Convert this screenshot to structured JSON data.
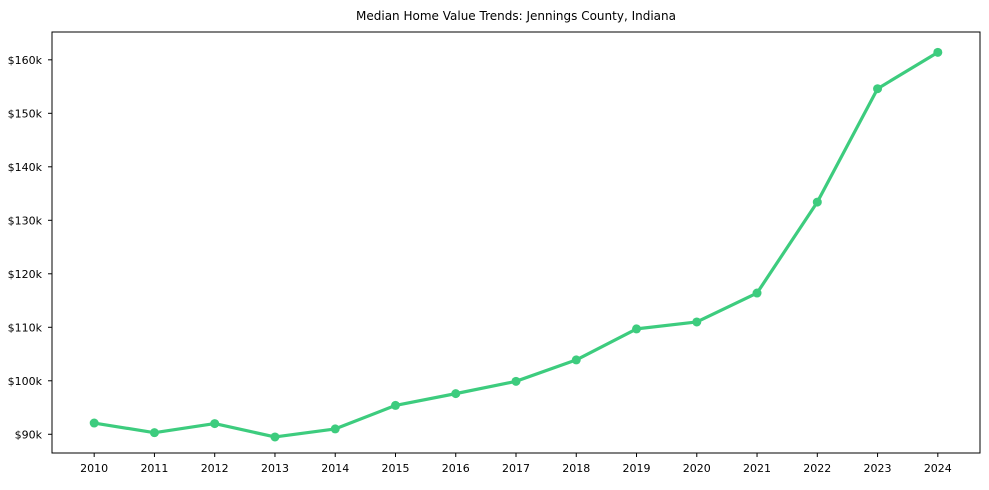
{
  "chart_data": {
    "type": "line",
    "title": "Median Home Value Trends: Jennings County, Indiana",
    "xlabel": "",
    "ylabel": "",
    "x": [
      2010,
      2011,
      2012,
      2013,
      2014,
      2015,
      2016,
      2017,
      2018,
      2019,
      2020,
      2021,
      2022,
      2023,
      2024
    ],
    "x_tick_labels": [
      "2010",
      "2011",
      "2012",
      "2013",
      "2014",
      "2015",
      "2016",
      "2017",
      "2018",
      "2019",
      "2020",
      "2021",
      "2022",
      "2023",
      "2024"
    ],
    "series": [
      {
        "name": "Median Home Value",
        "values": [
          92100,
          90300,
          92000,
          89500,
          91000,
          95400,
          97600,
          99900,
          103900,
          109700,
          111000,
          116400,
          133400,
          154600,
          161400
        ]
      }
    ],
    "y_ticks": [
      {
        "value": 90000,
        "label": "$90k"
      },
      {
        "value": 100000,
        "label": "$100k"
      },
      {
        "value": 110000,
        "label": "$110k"
      },
      {
        "value": 120000,
        "label": "$120k"
      },
      {
        "value": 130000,
        "label": "$130k"
      },
      {
        "value": 140000,
        "label": "$140k"
      },
      {
        "value": 150000,
        "label": "$150k"
      },
      {
        "value": 160000,
        "label": "$160k"
      }
    ],
    "xlim": [
      2009.3,
      2024.7
    ],
    "ylim": [
      86500,
      165200
    ],
    "grid": false,
    "legend": false,
    "line_color": "#3dcc7e",
    "marker": "circle",
    "marker_radius": 4.5,
    "line_width": 3.2,
    "axis_color": "#000000",
    "text_color": "#000000",
    "background": "#ffffff"
  }
}
